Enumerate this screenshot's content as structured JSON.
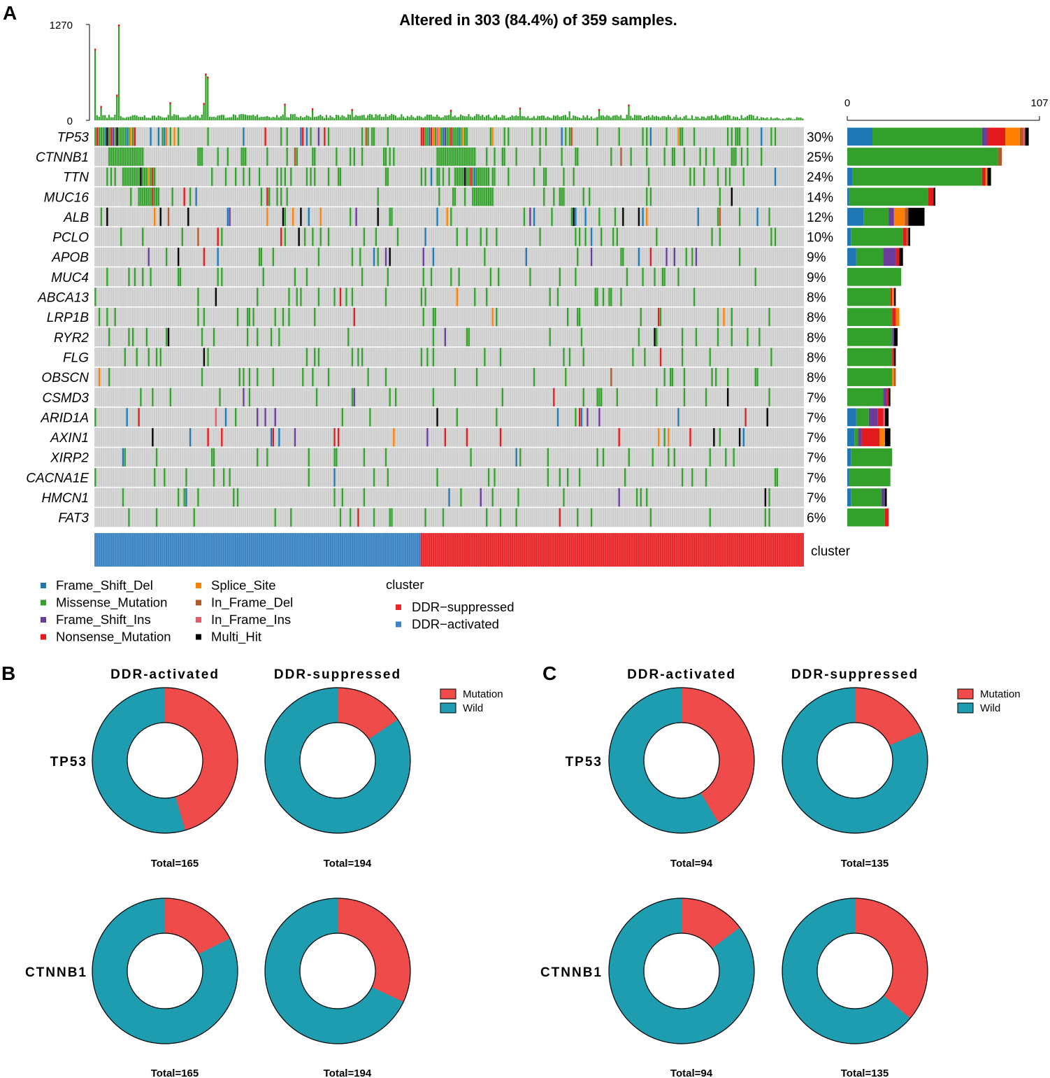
{
  "panels": {
    "a": "A",
    "b": "B",
    "c": "C"
  },
  "colors": {
    "Frame_Shift_Del": "#1F78B4",
    "Missense_Mutation": "#33A02C",
    "Frame_Shift_Ins": "#6A3D9A",
    "Nonsense_Mutation": "#E31A1C",
    "Splice_Site": "#FF7F00",
    "In_Frame_Del": "#B15928",
    "In_Frame_Ins": "#E05A6A",
    "Multi_Hit": "#000000",
    "grid": "#CCCCCC",
    "DDR-suppressed": "#E8272A",
    "DDR-activated": "#3B84C4",
    "Mutation": "#EF4B4B",
    "Wild": "#1E9CB0"
  },
  "chart_data": [
    {
      "type": "oncoplot",
      "title": "Altered in 303 (84.4%) of 359 samples.",
      "n_samples": 359,
      "n_activated": 165,
      "n_suppressed": 194,
      "top_axis": {
        "min": 0,
        "max": 1270,
        "ticks": [
          "0",
          "1270"
        ]
      },
      "right_axis": {
        "min": 0,
        "max": 107,
        "ticks": [
          "0",
          "107"
        ]
      },
      "genes": [
        {
          "name": "TP53",
          "pct": "30%",
          "counts": {
            "Frame_Shift_Del": 14,
            "Missense_Mutation": 61,
            "Frame_Shift_Ins": 3,
            "Nonsense_Mutation": 10,
            "Splice_Site": 8,
            "In_Frame_Del": 2,
            "In_Frame_Ins": 1,
            "Multi_Hit": 2
          }
        },
        {
          "name": "CTNNB1",
          "pct": "25%",
          "counts": {
            "Missense_Mutation": 84,
            "In_Frame_Del": 2
          }
        },
        {
          "name": "TTN",
          "pct": "24%",
          "counts": {
            "Frame_Shift_Del": 3,
            "Missense_Mutation": 72,
            "Nonsense_Mutation": 2,
            "Splice_Site": 1,
            "Multi_Hit": 2
          }
        },
        {
          "name": "MUC16",
          "pct": "14%",
          "counts": {
            "Frame_Shift_Del": 1,
            "Missense_Mutation": 44,
            "Nonsense_Mutation": 3,
            "Multi_Hit": 1
          }
        },
        {
          "name": "ALB",
          "pct": "12%",
          "counts": {
            "Frame_Shift_Del": 9,
            "Missense_Mutation": 14,
            "Frame_Shift_Ins": 3,
            "Splice_Site": 6,
            "In_Frame_Del": 2,
            "Multi_Hit": 9
          }
        },
        {
          "name": "PCLO",
          "pct": "10%",
          "counts": {
            "Frame_Shift_Del": 2,
            "Missense_Mutation": 29,
            "Nonsense_Mutation": 2,
            "In_Frame_Del": 1,
            "Multi_Hit": 1
          }
        },
        {
          "name": "APOB",
          "pct": "9%",
          "counts": {
            "Frame_Shift_Del": 5,
            "Missense_Mutation": 15,
            "Frame_Shift_Ins": 7,
            "Nonsense_Mutation": 2,
            "Multi_Hit": 2
          }
        },
        {
          "name": "MUC4",
          "pct": "9%",
          "counts": {
            "Missense_Mutation": 30
          }
        },
        {
          "name": "ABCA13",
          "pct": "8%",
          "counts": {
            "Missense_Mutation": 24,
            "Nonsense_Mutation": 1,
            "Splice_Site": 1,
            "Multi_Hit": 1
          }
        },
        {
          "name": "LRP1B",
          "pct": "8%",
          "counts": {
            "Missense_Mutation": 25,
            "Nonsense_Mutation": 2,
            "Splice_Site": 2
          }
        },
        {
          "name": "RYR2",
          "pct": "8%",
          "counts": {
            "Missense_Mutation": 25,
            "Frame_Shift_Ins": 1,
            "Multi_Hit": 2
          }
        },
        {
          "name": "FLG",
          "pct": "8%",
          "counts": {
            "Missense_Mutation": 25,
            "Nonsense_Mutation": 1,
            "Multi_Hit": 1
          }
        },
        {
          "name": "OBSCN",
          "pct": "8%",
          "counts": {
            "Missense_Mutation": 25,
            "Splice_Site": 1,
            "In_Frame_Del": 1
          }
        },
        {
          "name": "CSMD3",
          "pct": "7%",
          "counts": {
            "Missense_Mutation": 20,
            "Frame_Shift_Ins": 2,
            "Nonsense_Mutation": 1,
            "Multi_Hit": 1
          }
        },
        {
          "name": "ARID1A",
          "pct": "7%",
          "counts": {
            "Frame_Shift_Del": 5,
            "Missense_Mutation": 7,
            "Frame_Shift_Ins": 5,
            "Nonsense_Mutation": 3,
            "In_Frame_Ins": 1,
            "Multi_Hit": 2
          }
        },
        {
          "name": "AXIN1",
          "pct": "7%",
          "counts": {
            "Frame_Shift_Del": 4,
            "Missense_Mutation": 2,
            "Frame_Shift_Ins": 2,
            "Nonsense_Mutation": 10,
            "Splice_Site": 3,
            "Multi_Hit": 3
          }
        },
        {
          "name": "XIRP2",
          "pct": "7%",
          "counts": {
            "Frame_Shift_Del": 2,
            "Missense_Mutation": 23
          }
        },
        {
          "name": "CACNA1E",
          "pct": "7%",
          "counts": {
            "Frame_Shift_Del": 1,
            "Missense_Mutation": 23
          }
        },
        {
          "name": "HMCN1",
          "pct": "7%",
          "counts": {
            "Frame_Shift_Del": 2,
            "Missense_Mutation": 17,
            "Frame_Shift_Ins": 2,
            "Multi_Hit": 1
          }
        },
        {
          "name": "FAT3",
          "pct": "6%",
          "counts": {
            "Missense_Mutation": 21,
            "Nonsense_Mutation": 2
          }
        }
      ],
      "cluster_label": "cluster",
      "legend_variants": [
        "Frame_Shift_Del",
        "Missense_Mutation",
        "Frame_Shift_Ins",
        "Nonsense_Mutation",
        "Splice_Site",
        "In_Frame_Del",
        "In_Frame_Ins",
        "Multi_Hit"
      ],
      "legend_cluster_title": "cluster",
      "legend_cluster": [
        "DDR−suppressed",
        "DDR−activated"
      ]
    },
    {
      "type": "pie",
      "panel": "B",
      "columns": [
        "DDR-activated",
        "DDR-suppressed"
      ],
      "legend": [
        "Mutation",
        "Wild"
      ],
      "rows": [
        {
          "gene": "TP53",
          "cells": [
            {
              "total_label": "Total=165",
              "mutation_fraction": 0.455
            },
            {
              "total_label": "Total=194",
              "mutation_fraction": 0.155
            }
          ]
        },
        {
          "gene": "CTNNB1",
          "cells": [
            {
              "total_label": "Total=165",
              "mutation_fraction": 0.176
            },
            {
              "total_label": "Total=194",
              "mutation_fraction": 0.32
            }
          ]
        }
      ]
    },
    {
      "type": "pie",
      "panel": "C",
      "columns": [
        "DDR-activated",
        "DDR-suppressed"
      ],
      "legend": [
        "Mutation",
        "Wild"
      ],
      "rows": [
        {
          "gene": "TP53",
          "cells": [
            {
              "total_label": "Total=94",
              "mutation_fraction": 0.415
            },
            {
              "total_label": "Total=135",
              "mutation_fraction": 0.185
            }
          ]
        },
        {
          "gene": "CTNNB1",
          "cells": [
            {
              "total_label": "Total=94",
              "mutation_fraction": 0.148
            },
            {
              "total_label": "Total=135",
              "mutation_fraction": 0.363
            }
          ]
        }
      ]
    }
  ]
}
